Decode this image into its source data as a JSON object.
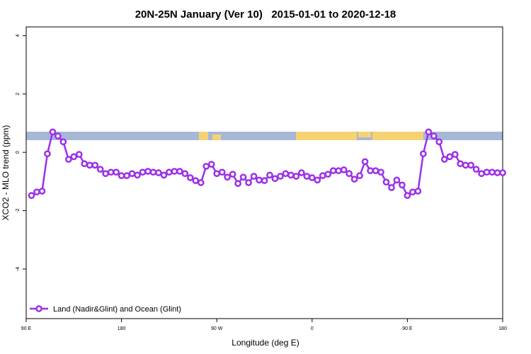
{
  "chart_data": {
    "type": "line",
    "title": "20N-25N January (Ver 10)   2015-01-01 to 2020-12-18",
    "x_label": "Longitude (deg E)",
    "y_label": "XCO2 - MLO trend (ppm)",
    "xlim": [
      90,
      540
    ],
    "ylim": [
      -5.7,
      4.3
    ],
    "xticks": [
      {
        "value": 90,
        "label": "90 E"
      },
      180,
      {
        "value": 270,
        "label": "90 W"
      },
      {
        "value": 360,
        "label": "0"
      },
      {
        "value": 450,
        "label": "90 E"
      },
      {
        "value": 540,
        "label": "180"
      }
    ],
    "yticks": [
      -4,
      -2,
      0,
      2,
      4
    ],
    "legend": "bottom-left",
    "x": [
      95,
      100,
      105,
      110,
      115,
      120,
      125,
      130,
      135,
      140,
      145,
      150,
      155,
      160,
      165,
      170,
      175,
      180,
      185,
      190,
      195,
      200,
      205,
      210,
      215,
      220,
      225,
      230,
      235,
      240,
      245,
      250,
      255,
      260,
      265,
      270,
      275,
      280,
      285,
      290,
      295,
      300,
      305,
      310,
      315,
      320,
      325,
      330,
      335,
      340,
      345,
      350,
      355,
      360,
      365,
      370,
      375,
      380,
      385,
      390,
      395,
      400,
      405,
      410,
      415,
      420,
      425,
      430,
      435,
      440,
      445,
      450,
      455,
      460,
      465,
      470,
      475,
      480,
      485,
      490,
      495,
      500,
      505,
      510,
      515,
      520,
      525,
      530,
      535,
      540
    ],
    "series": [
      {
        "name": "Land (Nadir&Glint) and Ocean (Glint)",
        "color": "#9b30e8",
        "values": [
          -1.48,
          -1.36,
          -1.33,
          -0.05,
          0.7,
          0.56,
          0.36,
          -0.24,
          -0.15,
          -0.07,
          -0.39,
          -0.44,
          -0.44,
          -0.58,
          -0.73,
          -0.68,
          -0.68,
          -0.8,
          -0.8,
          -0.73,
          -0.78,
          -0.68,
          -0.65,
          -0.68,
          -0.7,
          -0.78,
          -0.68,
          -0.65,
          -0.65,
          -0.73,
          -0.87,
          -0.97,
          -1.04,
          -0.48,
          -0.41,
          -0.73,
          -0.68,
          -0.85,
          -0.75,
          -1.07,
          -0.85,
          -1.04,
          -0.82,
          -0.95,
          -0.97,
          -0.78,
          -0.9,
          -0.82,
          -0.73,
          -0.78,
          -0.82,
          -0.7,
          -0.82,
          -0.87,
          -0.95,
          -0.8,
          -0.75,
          -0.63,
          -0.63,
          -0.6,
          -0.73,
          -0.92,
          -0.8,
          -0.32,
          -0.63,
          -0.63,
          -0.68,
          -1.02,
          -1.21,
          -0.95,
          -1.12,
          -1.48,
          -1.36,
          -1.33,
          -0.05,
          0.7,
          0.56,
          0.36,
          -0.24,
          -0.15,
          -0.07,
          -0.39,
          -0.44,
          -0.44,
          -0.58,
          -0.73,
          -0.68,
          -0.68,
          -0.7,
          -0.7
        ]
      }
    ]
  }
}
